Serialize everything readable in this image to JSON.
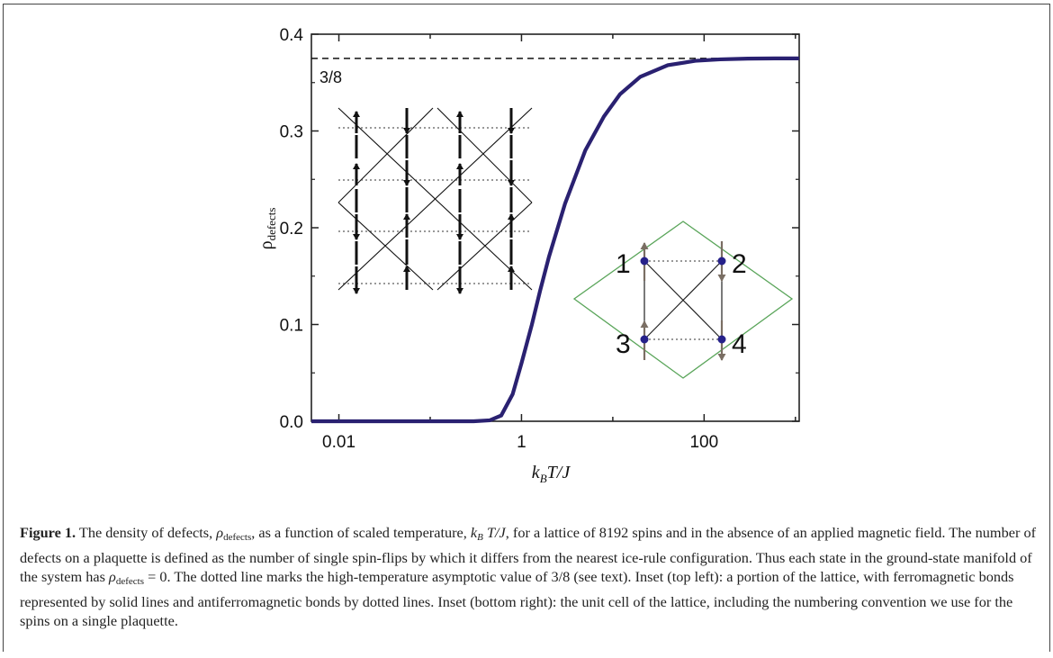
{
  "chart_data": {
    "type": "line",
    "x_scale": "log",
    "xlim": [
      0.005,
      1100
    ],
    "ylim": [
      0,
      0.4
    ],
    "xticks": [
      "0.01",
      "1",
      "100"
    ],
    "yticks": [
      "0.0",
      "0.1",
      "0.2",
      "0.3",
      "0.4"
    ],
    "xlabel": {
      "k": "k",
      "sub": "B",
      "rest": "T/J"
    },
    "ylabel": {
      "rho": "ρ",
      "sub": "defects"
    },
    "series": [
      {
        "color": "#2a2171",
        "x": [
          0.005,
          0.1,
          0.3,
          0.45,
          0.6,
          0.8,
          1.0,
          1.3,
          1.6,
          2.0,
          3.0,
          5.0,
          8.0,
          12,
          20,
          40,
          80,
          150,
          300,
          600,
          1100
        ],
        "y": [
          0.0,
          0.0,
          0.0,
          0.001,
          0.006,
          0.028,
          0.06,
          0.1,
          0.135,
          0.17,
          0.225,
          0.28,
          0.315,
          0.338,
          0.356,
          0.368,
          0.3725,
          0.374,
          0.3748,
          0.375,
          0.375
        ]
      }
    ],
    "reference_line": {
      "y": 0.375,
      "label": "3/8",
      "style": "dashed"
    }
  },
  "inset_unit_cell": {
    "spin_labels": [
      "1",
      "2",
      "3",
      "4"
    ],
    "colors": {
      "diamond": "#5aa55a",
      "spin": "#7a6e63",
      "site": "#26218a",
      "bond": "#222222"
    }
  },
  "caption": {
    "figure_label": "Figure 1.",
    "p1": " The density of defects, ",
    "p2": ", as a function of scaled temperature, ",
    "p3": ", for a lattice of 8192 spins and in the absence of an applied magnetic field. The number of defects on a plaquette is defined as the number of single spin-flips by which it differs from the nearest ice-rule configuration. Thus each state in the ground-state manifold of the system has ",
    "p4": ". The dotted line marks the high-temperature asymptotic value of 3/8 (see text). Inset (top left): a portion of the lattice, with ferromagnetic bonds represented by solid lines and antiferromagnetic bonds by dotted lines. Inset (bottom right): the unit cell of the lattice, including the numbering convention we use for the spins on a single plaquette.",
    "rho": "ρ",
    "rho_sub": "defects",
    "kbt_k": "k",
    "kbt_sub": "B",
    "kbt_rest": " T/J",
    "eq_rest": " = 0"
  }
}
